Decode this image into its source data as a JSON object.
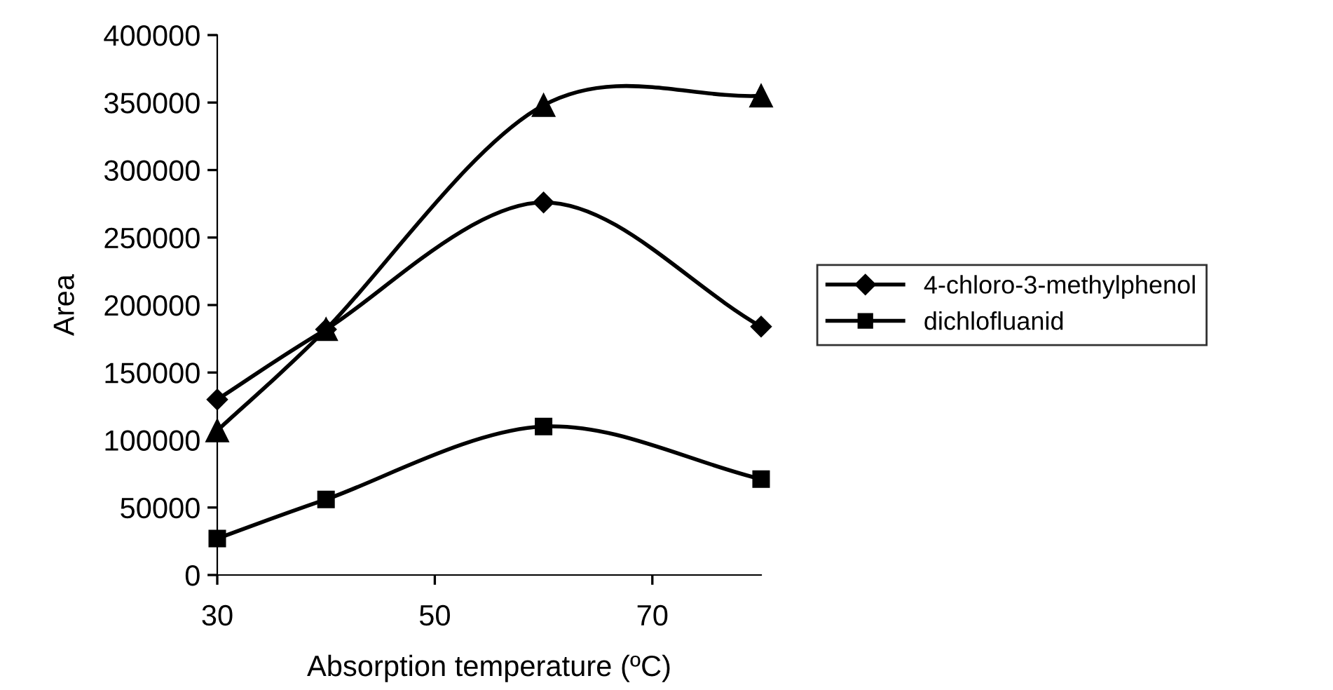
{
  "chart_data": {
    "type": "line",
    "xlabel": "Absorption temperature (ºC)",
    "ylabel": "Area",
    "x": [
      30,
      40,
      60,
      80
    ],
    "series": [
      {
        "color": "#000000",
        "marker": "triangle",
        "values": [
          107000,
          182000,
          348000,
          355000
        ]
      },
      {
        "name": "4-chloro-3-methylphenol",
        "color": "#000000",
        "marker": "diamond",
        "values": [
          130000,
          182000,
          276000,
          184000
        ]
      },
      {
        "name": "dichlofluanid",
        "color": "#000000",
        "marker": "square",
        "values": [
          27000,
          56000,
          110000,
          71000
        ]
      }
    ],
    "xlim": [
      30,
      80
    ],
    "xticks": [
      30,
      50,
      70
    ],
    "ylim": [
      0,
      400000
    ],
    "yticks": [
      0,
      50000,
      100000,
      150000,
      200000,
      250000,
      300000,
      350000,
      400000
    ],
    "grid": false,
    "legend": "right",
    "line_style": "solid"
  }
}
